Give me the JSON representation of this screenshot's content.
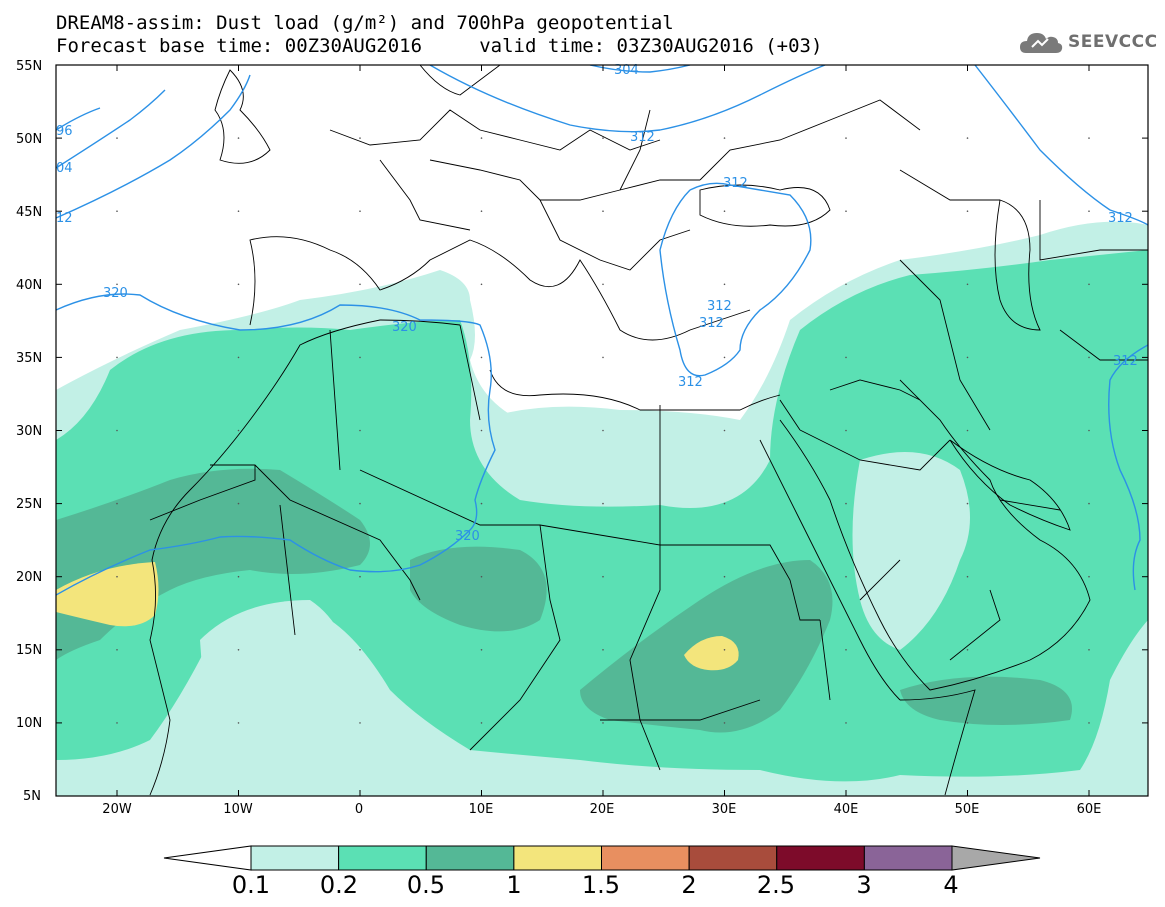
{
  "title_line1": "DREAM8-assim: Dust load (g/m²) and 700hPa geopotential",
  "title_line2": "Forecast base time: 00Z30AUG2016     valid time: 03Z30AUG2016 (+03)",
  "logo_text": "SEEVCCC",
  "lat_labels": [
    "55N",
    "50N",
    "45N",
    "40N",
    "35N",
    "30N",
    "25N",
    "20N",
    "15N",
    "10N",
    "5N"
  ],
  "lon_labels": [
    "20W",
    "10W",
    "0",
    "10E",
    "20E",
    "30E",
    "40E",
    "50E",
    "60E"
  ],
  "contour_labels": [
    "304",
    "312",
    "312",
    "312",
    "312",
    "312",
    "312",
    "312",
    "320",
    "320",
    "320",
    "96",
    "04",
    "12"
  ],
  "colorbar": {
    "labels": [
      "0.1",
      "0.2",
      "0.5",
      "1",
      "1.5",
      "2",
      "2.5",
      "3",
      "4"
    ],
    "colors": [
      "#c2f0e6",
      "#5be0b4",
      "#54b896",
      "#f3e57c",
      "#e88f60",
      "#a84c3c",
      "#7d0b2a",
      "#8a6498"
    ]
  },
  "colors": {
    "dust_01": "#c2f0e6",
    "dust_02": "#5be0b4",
    "dust_05": "#54b896",
    "dust_1": "#f3e57c",
    "contour": "#2c91e6",
    "border": "#000000"
  }
}
